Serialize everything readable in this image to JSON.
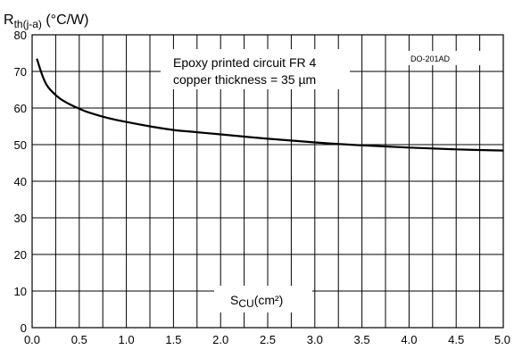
{
  "chart_data": {
    "type": "line",
    "ylabel_main": "R",
    "ylabel_sub": "th(j-a)",
    "ylabel_unit": " (°C/W)",
    "xlabel_main": "S",
    "xlabel_sub": "CU",
    "xlabel_unit": "(cm²)",
    "annotation_line1": "Epoxy printed circuit FR 4",
    "annotation_line2": "copper thickness = 35 µm",
    "package": "DO-201AD",
    "xlim": [
      0,
      5
    ],
    "ylim": [
      0,
      80
    ],
    "x_ticks": [
      "0.0",
      "0.5",
      "1.0",
      "1.5",
      "2.0",
      "2.5",
      "3.0",
      "3.5",
      "4.0",
      "4.5",
      "5.0"
    ],
    "y_ticks": [
      "0",
      "10",
      "20",
      "30",
      "40",
      "50",
      "60",
      "70",
      "80"
    ],
    "x_grid_step": 0.25,
    "y_grid_step": 10,
    "grid": true,
    "series": [
      {
        "x": [
          0.05,
          0.1,
          0.15,
          0.2,
          0.3,
          0.4,
          0.5,
          0.6,
          0.8,
          1.0,
          1.25,
          1.5,
          1.75,
          2.0,
          2.5,
          3.0,
          3.5,
          4.0,
          4.5,
          5.0
        ],
        "y": [
          73.5,
          69.5,
          66.5,
          64.8,
          62.5,
          61.0,
          59.8,
          58.8,
          57.3,
          56.2,
          55.0,
          54.0,
          53.4,
          52.8,
          51.6,
          50.6,
          49.8,
          49.2,
          48.7,
          48.4
        ],
        "color": "#000000"
      }
    ]
  }
}
